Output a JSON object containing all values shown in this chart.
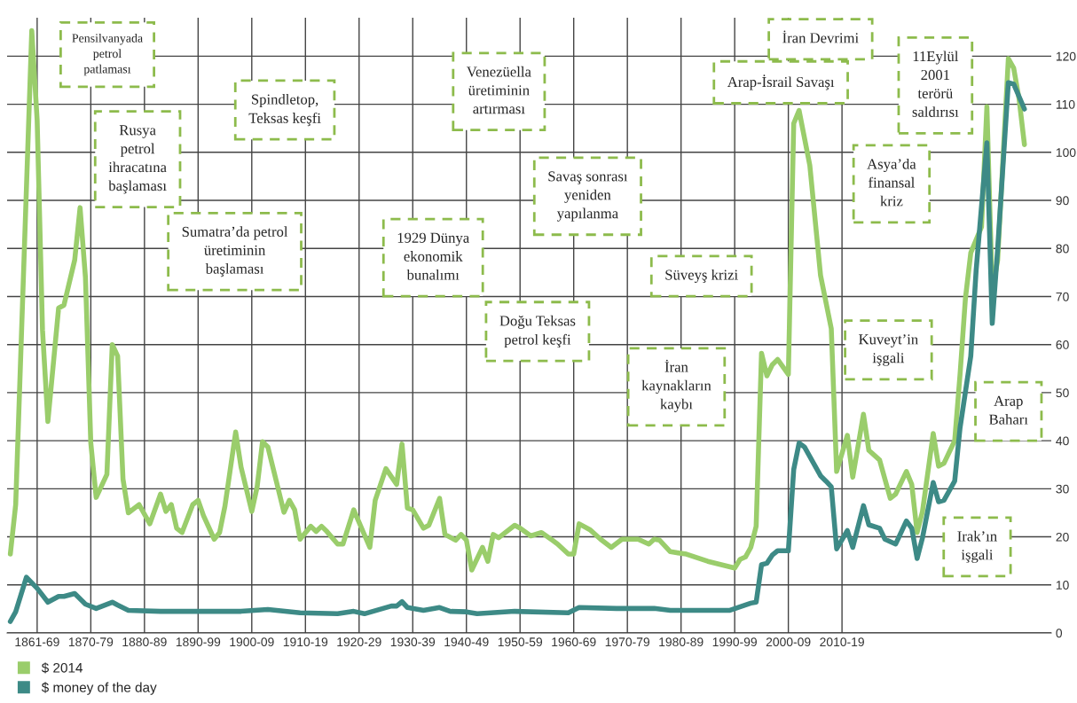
{
  "chart_data": {
    "type": "line",
    "categories": [
      null,
      null,
      null,
      null,
      null,
      "1861-69",
      null,
      null,
      null,
      null,
      null,
      null,
      null,
      null,
      null,
      "1870-79",
      null,
      null,
      null,
      null,
      null,
      null,
      null,
      null,
      null,
      "1880-89",
      null,
      null,
      null,
      null,
      null,
      null,
      null,
      null,
      null,
      "1890-99",
      null,
      null,
      null,
      null,
      null,
      null,
      null,
      null,
      null,
      "1900-09",
      null,
      null,
      null,
      null,
      null,
      null,
      null,
      null,
      null,
      "1910-19",
      null,
      null,
      null,
      null,
      null,
      null,
      null,
      null,
      null,
      "1920-29",
      null,
      null,
      null,
      null,
      null,
      null,
      null,
      null,
      null,
      "1930-39",
      null,
      null,
      null,
      null,
      null,
      null,
      null,
      null,
      null,
      "1940-49",
      null,
      null,
      null,
      null,
      null,
      null,
      null,
      null,
      null,
      "1950-59",
      null,
      null,
      null,
      null,
      null,
      null,
      null,
      null,
      null,
      "1960-69",
      null,
      null,
      null,
      null,
      null,
      null,
      null,
      null,
      null,
      "1970-79",
      null,
      null,
      null,
      null,
      null,
      null,
      null,
      null,
      null,
      "1980-89",
      null,
      null,
      null,
      null,
      null,
      null,
      null,
      null,
      null,
      "1990-99",
      null,
      null,
      null,
      null,
      null,
      null,
      null,
      null,
      null,
      "2000-09",
      null,
      null,
      null,
      null,
      null,
      null,
      null,
      null,
      null,
      "2010-19",
      null,
      null,
      null,
      null,
      null,
      null,
      null,
      null,
      null,
      null,
      null,
      null,
      null,
      null,
      null,
      null,
      null,
      null,
      null,
      null,
      null,
      null,
      null,
      null,
      null,
      null,
      null,
      null,
      null,
      null,
      null,
      null,
      null,
      null
    ],
    "ylim": [
      0,
      128
    ],
    "yticks": [
      0,
      10,
      20,
      30,
      40,
      50,
      60,
      70,
      80,
      90,
      100,
      110,
      120
    ],
    "grid": true,
    "legend": "bottom left",
    "marker": "none",
    "line_style": "solid",
    "series": [
      {
        "name": "$ 2014",
        "color": "#9acd6b",
        "values": [
          16.4,
          26.7,
          null,
          null,
          125.3,
          106.7,
          63,
          44,
          null,
          67.6,
          68.2,
          null,
          77.6,
          88.5,
          74,
          39.5,
          28.2,
          null,
          33,
          60,
          57.6,
          32,
          25,
          null,
          26.7,
          null,
          22.7,
          null,
          28.9,
          25.3,
          26.7,
          21.8,
          20.9,
          null,
          26.7,
          27.6,
          24.4,
          null,
          19.5,
          20.9,
          26.4,
          null,
          41.8,
          34.5,
          null,
          25.3,
          30.4,
          39.8,
          38.7,
          null,
          null,
          25.1,
          27.6,
          25.6,
          19.5,
          null,
          22.2,
          21.1,
          22.2,
          21.1,
          null,
          18.5,
          18.5,
          null,
          25.6,
          null,
          null,
          17.8,
          27.6,
          null,
          34.2,
          null,
          30.9,
          39.3,
          26,
          25.6,
          null,
          21.8,
          22.4,
          null,
          28,
          20.5,
          null,
          19.3,
          20.5,
          19.3,
          13.1,
          null,
          17.8,
          14.9,
          20.5,
          19.8,
          null,
          null,
          22.4,
          21.8,
          null,
          20.2,
          null,
          20.9,
          null,
          19.3,
          18.5,
          null,
          16.4,
          16.4,
          22.7,
          null,
          21.5,
          null,
          19.5,
          null,
          17.8,
          null,
          19.5,
          null,
          null,
          19.5,
          null,
          18.5,
          19.5,
          19.3,
          null,
          16.9,
          null,
          null,
          16.4,
          null,
          null,
          null,
          14.9,
          null,
          null,
          null,
          null,
          13.5,
          15.3,
          15.8,
          17.8,
          22.2,
          58.2,
          53.5,
          55.8,
          56.9,
          null,
          53.8,
          106,
          108.7,
          null,
          97.3,
          null,
          74.4,
          null,
          63.3,
          33.6,
          null,
          41.1,
          32.4,
          null,
          45.5,
          38,
          null,
          36,
          null,
          28,
          28.9,
          null,
          33.6,
          30.9,
          20.9,
          25.3,
          null,
          41.5,
          34.7,
          35.3,
          null,
          40,
          53.8,
          69.6,
          79.1,
          null,
          84.5,
          109.5,
          71.1,
          77.5,
          null,
          119.5,
          117.5,
          111.1,
          101.6
        ]
      },
      {
        "name": "$ money of the day",
        "color": "#3d8a86",
        "values": [
          2.4,
          4.4,
          null,
          11.6,
          null,
          9.3,
          null,
          6.4,
          null,
          7.6,
          7.6,
          null,
          8.2,
          null,
          6,
          null,
          5.1,
          null,
          null,
          6.4,
          5.8,
          null,
          4.7,
          null,
          null,
          null,
          null,
          null,
          4.5,
          null,
          null,
          null,
          null,
          4.5,
          null,
          null,
          null,
          null,
          null,
          null,
          null,
          null,
          null,
          4.5,
          null,
          null,
          null,
          null,
          4.9,
          null,
          null,
          null,
          null,
          null,
          4.2,
          null,
          null,
          null,
          null,
          null,
          null,
          4,
          null,
          null,
          4.5,
          null,
          4,
          null,
          null,
          null,
          null,
          5.6,
          5.6,
          6.5,
          5.3,
          null,
          null,
          4.7,
          null,
          null,
          5.3,
          null,
          4.5,
          null,
          null,
          4.4,
          null,
          4,
          null,
          null,
          null,
          null,
          null,
          null,
          4.5,
          null,
          null,
          null,
          null,
          null,
          null,
          null,
          null,
          null,
          4.2,
          null,
          5.3,
          null,
          null,
          null,
          null,
          null,
          null,
          5.1,
          null,
          null,
          null,
          null,
          null,
          null,
          5.1,
          null,
          null,
          4.7,
          null,
          null,
          null,
          null,
          null,
          null,
          null,
          null,
          null,
          null,
          4.7,
          null,
          null,
          null,
          6.2,
          6.4,
          14.2,
          14.5,
          16.2,
          17.1,
          null,
          17.1,
          34,
          39.5,
          38.7,
          null,
          null,
          32.7,
          31.6,
          30.4,
          17.5,
          null,
          21.3,
          17.8,
          null,
          26.5,
          22.5,
          null,
          21.8,
          19.5,
          null,
          18.5,
          null,
          23.3,
          21.8,
          15.5,
          19.8,
          null,
          31.3,
          27.3,
          27.6,
          null,
          31.6,
          42.7,
          null,
          57.6,
          75.5,
          null,
          102,
          64.4,
          79.8,
          null,
          114.5,
          114.2,
          null,
          109
        ]
      }
    ],
    "annotations": [
      "Pensilvanyada\npetrol\npatlaması",
      "Rusya\npetrol\nihracatına\nbaşlaması",
      "Sumatra’da petrol\nüretiminin\nbaşlaması",
      "Spindletop,\nTeksas keşfi",
      "1929 Dünya\nekonomik\nbunalımı",
      "Venezüella\nüretiminin\nartırması",
      "Savaş sonrası\nyeniden\nyapılanma",
      "Doğu Teksas\npetrol keşfi",
      "Süveyş krizi",
      "İran\nkaynakların\nkaybı",
      "İran Devrimi",
      "Arap-İsrail Savaşı",
      "11Eylül\n2001\nterörü\nsaldırısı",
      "Asya’da\nfinansal\nkriz",
      "Kuveyt’in\nişgali",
      "Arap\nBaharı",
      "Irak’ın\nişgali"
    ]
  }
}
